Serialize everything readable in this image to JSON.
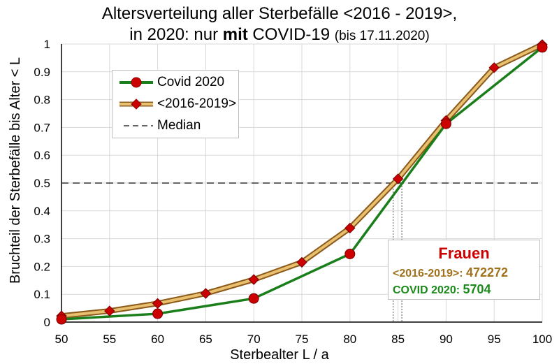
{
  "chart_data": {
    "type": "line",
    "title_line1": "Altersverteilung aller Sterbefälle <2016 - 2019>,",
    "title_line2_prefix": "in 2020: nur",
    "title_line2_bold": "mit",
    "title_line2_mid": "COVID-19",
    "title_line2_suffix": "(bis 17.11.2020)",
    "xlabel": "Sterbealter L / a",
    "ylabel": "Bruchteil der Sterbefälle bis Alter  < L",
    "xlim": [
      50,
      100
    ],
    "ylim": [
      0,
      1
    ],
    "x_ticks": [
      50,
      55,
      60,
      65,
      70,
      75,
      80,
      85,
      90,
      95,
      100
    ],
    "y_ticks": [
      0,
      0.1,
      0.2,
      0.3,
      0.4,
      0.5,
      0.6,
      0.7,
      0.8,
      0.9,
      1
    ],
    "grid": true,
    "legend_position": "top-left",
    "series": [
      {
        "name": "Covid 2020",
        "color": "#1a7f1a",
        "marker_color": "#cc0000",
        "marker": "circle",
        "x": [
          50,
          60,
          70,
          80,
          90,
          100
        ],
        "values": [
          0.01,
          0.03,
          0.085,
          0.245,
          0.713,
          0.988
        ]
      },
      {
        "name": "<2016-2019>",
        "color": "#e8c070",
        "outline_color": "#8b5a1a",
        "marker_color": "#cc0000",
        "marker": "diamond",
        "x": [
          50,
          55,
          60,
          65,
          70,
          75,
          80,
          85,
          90,
          95,
          100
        ],
        "values": [
          0.022,
          0.04,
          0.067,
          0.103,
          0.153,
          0.215,
          0.338,
          0.515,
          0.725,
          0.915,
          0.998
        ]
      }
    ],
    "median_legend": "Median",
    "median_value": 0.5,
    "median_crossings": [
      84.5,
      85.4
    ],
    "annotation": {
      "title": "Frauen",
      "title_color": "#cc0000",
      "line1_label": "<2016-2019>:",
      "line1_value": "472272",
      "line1_color": "#a0721c",
      "line2_label": "COVID 2020:",
      "line2_value": "5704",
      "line2_color": "#1a8a1a"
    }
  }
}
